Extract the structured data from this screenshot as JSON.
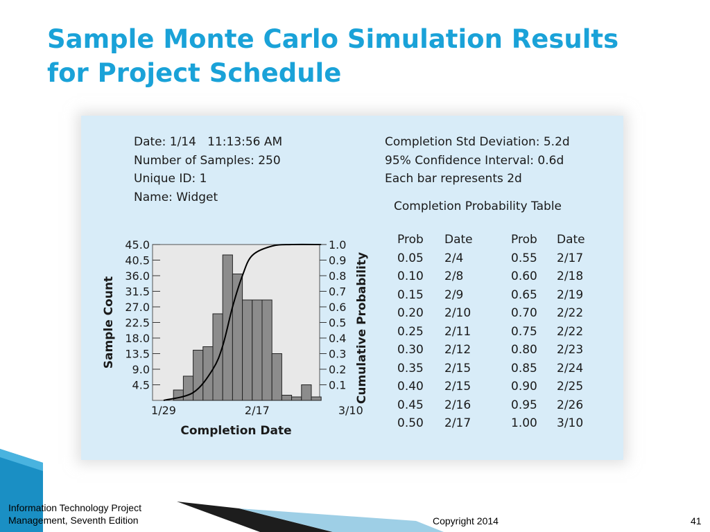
{
  "slide": {
    "title_line1": "Sample Monte Carlo Simulation Results",
    "title_line2": "for Project Schedule"
  },
  "info_left": [
    "Date: 1/14   11:13:56 AM",
    "Number of Samples: 250",
    "Unique ID: 1",
    "Name: Widget"
  ],
  "info_right": [
    "Completion Std Deviation: 5.2d",
    "95% Confidence Interval: 0.6d",
    "Each bar represents 2d"
  ],
  "probability_table": {
    "title": "Completion Probability Table",
    "headers": [
      "Prob",
      "Date",
      "Prob",
      "Date"
    ],
    "rows": [
      [
        "0.05",
        "2/4",
        "0.55",
        "2/17"
      ],
      [
        "0.10",
        "2/8",
        "0.60",
        "2/18"
      ],
      [
        "0.15",
        "2/9",
        "0.65",
        "2/19"
      ],
      [
        "0.20",
        "2/10",
        "0.70",
        "2/22"
      ],
      [
        "0.25",
        "2/11",
        "0.75",
        "2/22"
      ],
      [
        "0.30",
        "2/12",
        "0.80",
        "2/23"
      ],
      [
        "0.35",
        "2/15",
        "0.85",
        "2/24"
      ],
      [
        "0.40",
        "2/15",
        "0.90",
        "2/25"
      ],
      [
        "0.45",
        "2/16",
        "0.95",
        "2/26"
      ],
      [
        "0.50",
        "2/17",
        "1.00",
        "3/10"
      ]
    ]
  },
  "chart_data": {
    "type": "bar",
    "title": "",
    "xlabel": "Completion Date",
    "ylabel": "Sample Count",
    "y2label": "Cumulative Probability",
    "x_tick_labels": [
      {
        "label": "1/29",
        "bin": 0
      },
      {
        "label": "2/17",
        "bin": 9.5
      },
      {
        "label": "3/10",
        "bin": 19
      }
    ],
    "y_ticks": [
      "4.5",
      "9.0",
      "13.5",
      "18.0",
      "22.5",
      "27.0",
      "31.5",
      "36.0",
      "40.5",
      "45.0"
    ],
    "y_tick_values": [
      4.5,
      9.0,
      13.5,
      18.0,
      22.5,
      27.0,
      31.5,
      36.0,
      40.5,
      45.0
    ],
    "ylim": [
      0,
      45
    ],
    "y2_ticks": [
      "0.1",
      "0.2",
      "0.3",
      "0.4",
      "0.5",
      "0.6",
      "0.7",
      "0.8",
      "0.9",
      "1.0"
    ],
    "y2_tick_values": [
      0.1,
      0.2,
      0.3,
      0.4,
      0.5,
      0.6,
      0.7,
      0.8,
      0.9,
      1.0
    ],
    "y2lim": [
      0,
      1
    ],
    "bar_values": [
      0,
      3,
      7,
      14.5,
      15.5,
      25,
      42,
      36.5,
      29,
      29,
      29,
      13.5,
      1.5,
      1,
      4.5,
      1
    ],
    "cumulative": [
      {
        "bin": 0,
        "p": 0.0
      },
      {
        "bin": 3,
        "p": 0.05
      },
      {
        "bin": 5,
        "p": 0.2
      },
      {
        "bin": 6,
        "p": 0.35
      },
      {
        "bin": 7,
        "p": 0.6
      },
      {
        "bin": 8,
        "p": 0.8
      },
      {
        "bin": 9,
        "p": 0.93
      },
      {
        "bin": 11,
        "p": 0.99
      },
      {
        "bin": 13,
        "p": 1.0
      },
      {
        "bin": 16,
        "p": 1.0
      }
    ],
    "grid": false,
    "colors": {
      "bar_fill": "#8c8c8c",
      "plot_bg": "#e8e8e8",
      "line": "#000000"
    }
  },
  "footer": {
    "source_line1": "Information Technology Project",
    "source_line2": "Management, Seventh Edition",
    "copyright": "Copyright 2014",
    "page_number": "41"
  },
  "theme": {
    "title_color": "#1aa2d8",
    "panel_bg": "#d8ecf8"
  }
}
